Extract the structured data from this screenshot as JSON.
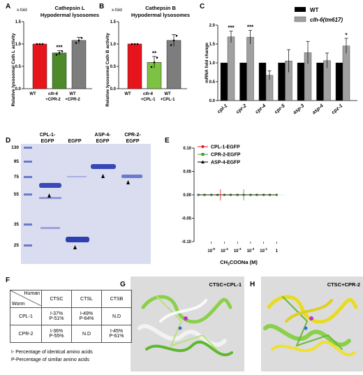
{
  "panels": {
    "A": {
      "letter": "A",
      "unit_note": "x-fold",
      "title_line1": "Cathepsin L",
      "title_line2": "Hypodermal lysosomes",
      "ylabel": "Relative lysosomal Cath L activity",
      "chart_data": {
        "type": "bar",
        "categories": [
          "WT",
          "clh-6 +CPR-2",
          "WT +CPR-2"
        ],
        "values": [
          1.0,
          0.8,
          1.08
        ],
        "errors": [
          0.0,
          0.05,
          0.07
        ],
        "ylim": [
          0,
          1.5
        ],
        "yticks": [
          "0.0",
          "0.5",
          "1.0",
          "1.5"
        ],
        "significance": [
          "",
          "***",
          ""
        ],
        "colors": [
          "#e8141c",
          "#4d8a2a",
          "#7d7d7d"
        ]
      }
    },
    "B": {
      "letter": "B",
      "unit_note": "x-fold",
      "title_line1": "Cathepsin B",
      "title_line2": "Hypodermal lysosomes",
      "ylabel": "Relative lysosomal Cath B activity",
      "chart_data": {
        "type": "bar",
        "categories": [
          "WT",
          "clh-6 +CPL-1",
          "WT +CPL-1"
        ],
        "values": [
          1.0,
          0.59,
          1.08
        ],
        "errors": [
          0.0,
          0.13,
          0.13
        ],
        "ylim": [
          0,
          1.5
        ],
        "yticks": [
          "0.0",
          "0.5",
          "1.0",
          "1.5"
        ],
        "significance": [
          "",
          "**",
          ""
        ],
        "colors": [
          "#e8141c",
          "#7dc242",
          "#7d7d7d"
        ]
      }
    },
    "C": {
      "letter": "C",
      "ylabel": "mRNA fold change",
      "chart_data": {
        "type": "bar",
        "categories": [
          "cpl-1",
          "cpr-2",
          "cpr-4",
          "cpr-5",
          "asp-3",
          "asp-4",
          "cpz-1"
        ],
        "series": [
          {
            "name": "WT",
            "color": "#000000",
            "values": [
              1,
              1,
              1,
              1,
              1,
              1,
              1
            ],
            "errors": [
              0,
              0,
              0,
              0,
              0,
              0,
              0
            ]
          },
          {
            "name": "clh-6(tm617)",
            "color": "#a0a0a0",
            "values": [
              1.69,
              1.68,
              0.67,
              1.05,
              1.27,
              1.06,
              1.45
            ],
            "errors": [
              0.15,
              0.18,
              0.12,
              0.3,
              0.3,
              0.2,
              0.2
            ]
          }
        ],
        "ylim": [
          0,
          2.0
        ],
        "yticks": [
          "0.0",
          "0.5",
          "1.0",
          "1.5",
          "2.0"
        ],
        "significance": [
          "***",
          "***",
          "",
          "",
          "",
          "",
          "*"
        ],
        "legend_position": "top-right"
      }
    },
    "D": {
      "letter": "D",
      "lane_labels": [
        "CPL-1-\nEGFP",
        "EGFP",
        "ASP-4-\nEGFP",
        "CPR-2-\nEGFP"
      ],
      "lane_label_lines": [
        [
          "CPL-1-",
          "EGFP"
        ],
        [
          "EGFP"
        ],
        [
          "ASP-4-",
          "EGFP"
        ],
        [
          "CPR-2-",
          "EGFP"
        ]
      ],
      "mw_markers": [
        "130",
        "95",
        "75",
        "55",
        "35",
        "25"
      ]
    },
    "E": {
      "letter": "E",
      "xlabel": "CH3COONa (M)",
      "chart_data": {
        "type": "line",
        "x": [
          1e-06,
          3e-06,
          1e-05,
          3e-05,
          0.0001,
          0.0003,
          0.001,
          0.003,
          0.01,
          0.03,
          0.1,
          0.3,
          1
        ],
        "series": [
          {
            "name": "CPL-1-EGFP",
            "color": "#e8141c",
            "values": [
              0,
              0,
              0,
              0,
              0,
              0,
              0,
              0,
              0,
              0,
              0,
              0,
              0
            ]
          },
          {
            "name": "CPR-2-EGFP",
            "color": "#3f9a2f",
            "values": [
              0,
              0,
              0,
              0,
              0,
              0,
              0,
              0,
              0,
              0,
              0,
              0,
              0
            ]
          },
          {
            "name": "ASP-4-EGFP",
            "color": "#000000",
            "values": [
              0,
              0,
              0,
              0,
              0,
              0,
              0,
              0,
              0,
              0,
              0,
              0,
              0
            ]
          }
        ],
        "xscale": "log",
        "ylim": [
          -0.1,
          0.1
        ],
        "yticks": [
          "0.10",
          "0.05",
          "0.00",
          "-0.05",
          "-0.10"
        ],
        "xticks": [
          "10",
          "10",
          "10",
          "10",
          "10",
          "10",
          "1"
        ],
        "xtick_exponents": [
          "-5",
          "-4",
          "-3",
          "-2",
          "-1",
          "",
          ""
        ],
        "legend_position": "top-left"
      }
    },
    "F": {
      "letter": "F",
      "corner_top": "Human",
      "corner_bottom": "Worm",
      "col_headers": [
        "CTSC",
        "CTSL",
        "CTSB"
      ],
      "rows": [
        {
          "name": "CPL-1",
          "cells": [
            [
              "I-37%",
              "P-51%"
            ],
            [
              "I-49%",
              "P-64%"
            ],
            [
              "N.D"
            ]
          ]
        },
        {
          "name": "CPR-2",
          "cells": [
            [
              "I-36%",
              "P-55%"
            ],
            [
              "N.D"
            ],
            [
              "I-45%",
              "P-61%"
            ]
          ]
        }
      ],
      "note1": "I- Percentage of identical amino acids",
      "note2": "P-Percentage of similar amino acids"
    },
    "G": {
      "letter": "G",
      "title": "CTSC+CPL-1"
    },
    "H": {
      "letter": "H",
      "title": "CTSC+CPR-2"
    }
  }
}
